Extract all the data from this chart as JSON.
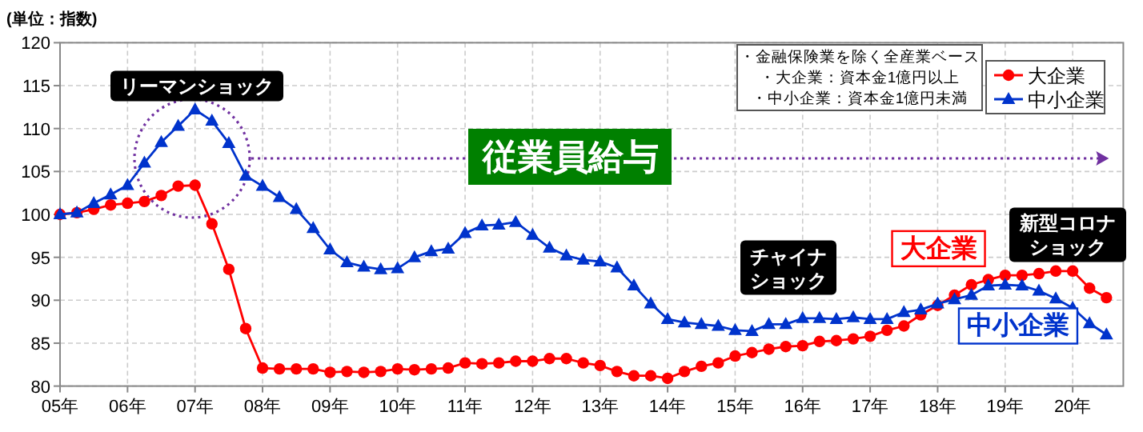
{
  "chart_data": {
    "type": "line",
    "title": "従業員給与",
    "ylabel": "(単位：指数)",
    "x": [
      5,
      5.25,
      5.5,
      5.75,
      6,
      6.25,
      6.5,
      6.75,
      7,
      7.25,
      7.5,
      7.75,
      8,
      8.25,
      8.5,
      8.75,
      9,
      9.25,
      9.5,
      9.75,
      10,
      10.25,
      10.5,
      10.75,
      11,
      11.25,
      11.5,
      11.75,
      12,
      12.25,
      12.5,
      12.75,
      13,
      13.25,
      13.5,
      13.75,
      14,
      14.25,
      14.5,
      14.75,
      15,
      15.25,
      15.5,
      15.75,
      16,
      16.25,
      16.5,
      16.75,
      17,
      17.25,
      17.5,
      17.75,
      18,
      18.25,
      18.5,
      18.75,
      19,
      19.25,
      19.5,
      19.75,
      20,
      20.25,
      20.5
    ],
    "series": [
      {
        "name": "大企業",
        "color": "#ff0000",
        "marker": "circle",
        "values": [
          100,
          100.2,
          100.6,
          101.1,
          101.3,
          101.5,
          102.2,
          103.3,
          103.4,
          98.9,
          93.6,
          86.7,
          82.1,
          82.0,
          82.0,
          82.0,
          81.6,
          81.7,
          81.6,
          81.7,
          82.0,
          81.9,
          82.0,
          82.1,
          82.7,
          82.6,
          82.7,
          82.9,
          82.9,
          83.2,
          83.2,
          82.7,
          82.4,
          81.7,
          81.2,
          81.2,
          80.9,
          81.7,
          82.3,
          82.7,
          83.5,
          83.9,
          84.3,
          84.6,
          84.7,
          85.2,
          85.3,
          85.5,
          85.8,
          86.5,
          87.0,
          88.3,
          89.4,
          90.6,
          91.8,
          92.4,
          92.9,
          92.9,
          93.1,
          93.4,
          93.4,
          91.4,
          90.3
        ]
      },
      {
        "name": "中小企業",
        "color": "#0033cc",
        "marker": "triangle",
        "values": [
          100,
          100.2,
          101.3,
          102.3,
          103.4,
          106.0,
          108.4,
          110.3,
          112.2,
          110.9,
          108.3,
          104.5,
          103.3,
          102.0,
          100.6,
          98.4,
          95.9,
          94.4,
          93.9,
          93.6,
          93.7,
          95.0,
          95.7,
          96.0,
          97.8,
          98.7,
          98.8,
          99.1,
          97.6,
          96.1,
          95.2,
          94.7,
          94.5,
          93.8,
          91.7,
          89.6,
          87.8,
          87.4,
          87.2,
          87.0,
          86.5,
          86.4,
          87.2,
          87.2,
          87.9,
          87.9,
          87.8,
          88.0,
          87.8,
          87.8,
          88.6,
          88.9,
          89.6,
          90.1,
          90.6,
          91.7,
          91.8,
          91.7,
          91.1,
          90.2,
          89.1,
          87.3,
          86.0
        ]
      }
    ],
    "xlim": [
      5,
      20.75
    ],
    "xticks": [
      {
        "value": 5,
        "label": "05年"
      },
      {
        "value": 6,
        "label": "06年"
      },
      {
        "value": 7,
        "label": "07年"
      },
      {
        "value": 8,
        "label": "08年"
      },
      {
        "value": 9,
        "label": "09年"
      },
      {
        "value": 10,
        "label": "10年"
      },
      {
        "value": 11,
        "label": "11年"
      },
      {
        "value": 12,
        "label": "12年"
      },
      {
        "value": 13,
        "label": "13年"
      },
      {
        "value": 14,
        "label": "14年"
      },
      {
        "value": 15,
        "label": "15年"
      },
      {
        "value": 16,
        "label": "16年"
      },
      {
        "value": 17,
        "label": "17年"
      },
      {
        "value": 18,
        "label": "18年"
      },
      {
        "value": 19,
        "label": "19年"
      },
      {
        "value": 20,
        "label": "20年"
      }
    ],
    "ylim": [
      80,
      120
    ],
    "yticks": [
      80,
      85,
      90,
      95,
      100,
      105,
      110,
      115,
      120
    ],
    "grid": true,
    "legend": "top right",
    "annotations": [
      "・金融保険業を除く全産業ベース",
      "・大企業：資本金1億円以上",
      "・中小企業：資本金1億円未満",
      "リーマンショック",
      "チャイナショック",
      "新型コロナショック"
    ]
  }
}
